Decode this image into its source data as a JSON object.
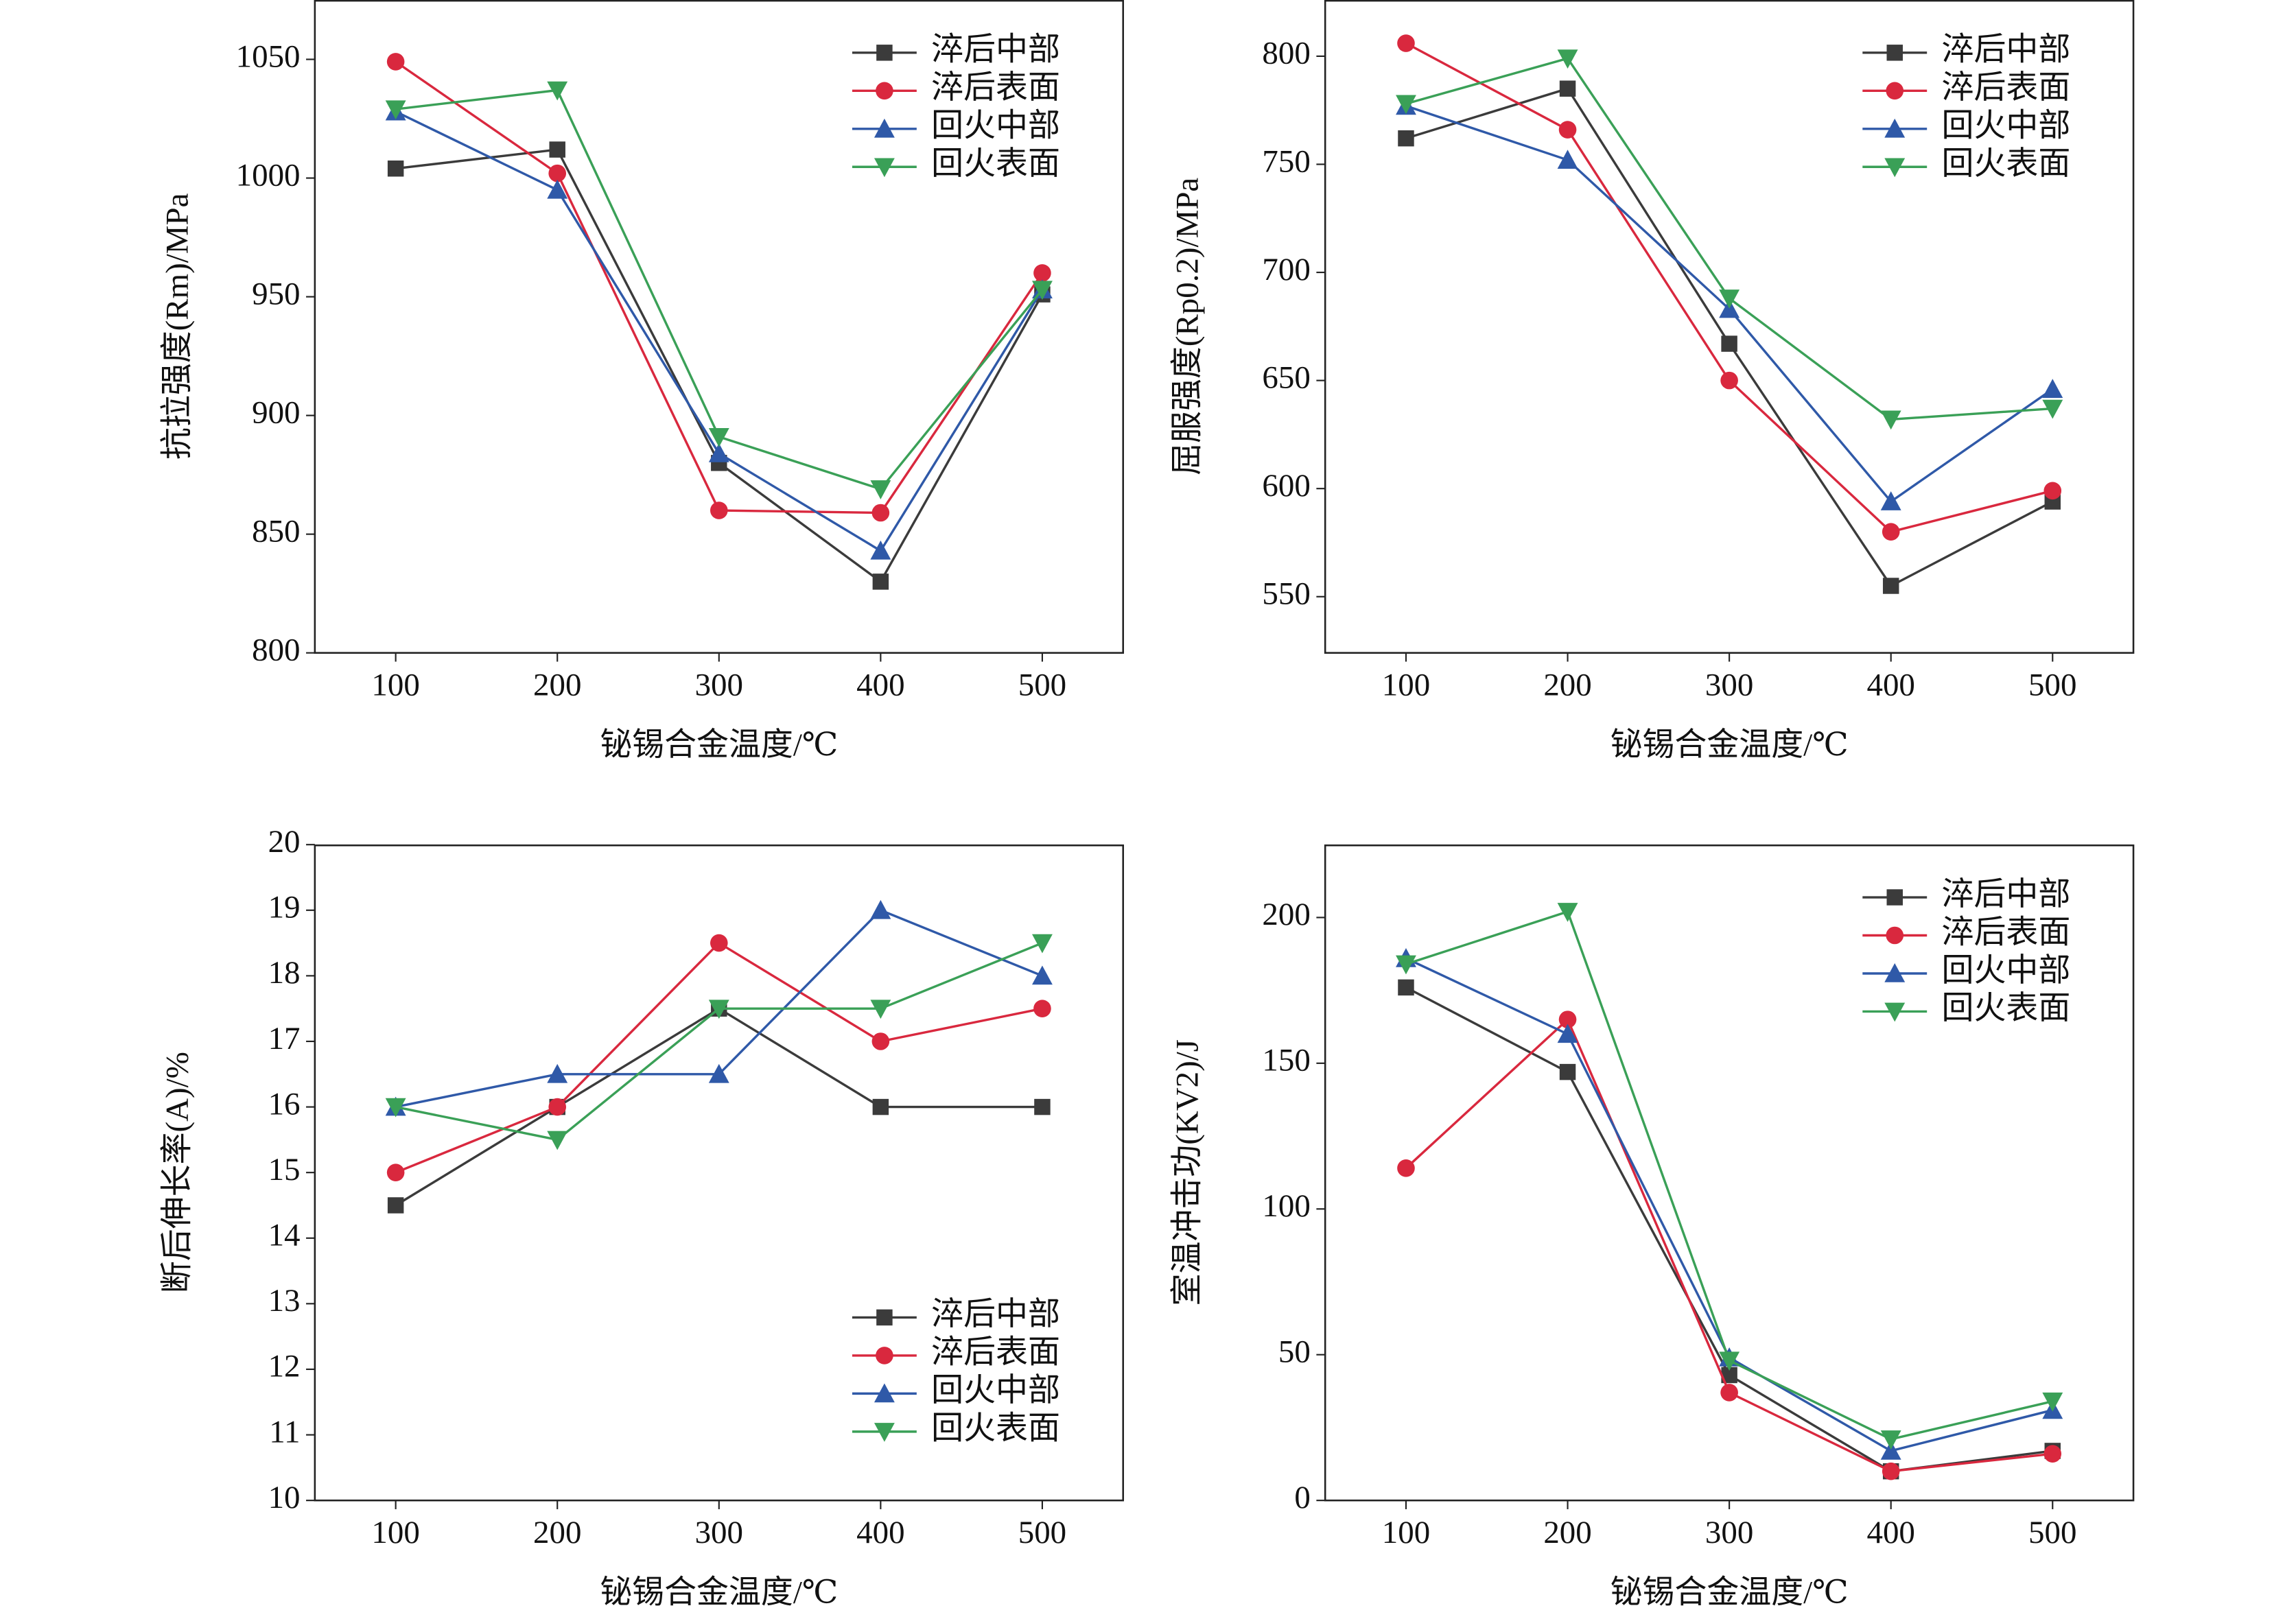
{
  "chart_data": [
    {
      "type": "line",
      "xlabel": "铋锡合金温度/℃",
      "ylabel": "抗拉强度(Rm)/MPa",
      "x": [
        100,
        200,
        300,
        400,
        500
      ],
      "xlim": [
        50,
        550
      ],
      "xticks": [
        100,
        200,
        300,
        400,
        500
      ],
      "ylim": [
        800,
        1075
      ],
      "yticks": [
        800,
        850,
        900,
        950,
        1000,
        1050
      ],
      "legend": "upper right",
      "series": [
        {
          "name": "淬后中部",
          "color": "#3b3b3b",
          "marker": "square",
          "values": [
            1004,
            1012,
            880,
            830,
            951
          ]
        },
        {
          "name": "淬后表面",
          "color": "#d9283e",
          "marker": "circle",
          "values": [
            1049,
            1002,
            860,
            859,
            960
          ]
        },
        {
          "name": "回火中部",
          "color": "#2f59a8",
          "marker": "triangle-up",
          "values": [
            1028,
            995,
            884,
            843,
            953
          ]
        },
        {
          "name": "回火表面",
          "color": "#3aa057",
          "marker": "triangle-down",
          "values": [
            1029,
            1037,
            891,
            869,
            953
          ]
        }
      ]
    },
    {
      "type": "line",
      "xlabel": "铋锡合金温度/℃",
      "ylabel": "屈服强度(Rp0.2)/MPa",
      "x": [
        100,
        200,
        300,
        400,
        500
      ],
      "xlim": [
        50,
        550
      ],
      "xticks": [
        100,
        200,
        300,
        400,
        500
      ],
      "ylim": [
        524,
        826
      ],
      "yticks": [
        550,
        600,
        650,
        700,
        750,
        800
      ],
      "legend": "upper right",
      "series": [
        {
          "name": "淬后中部",
          "color": "#3b3b3b",
          "marker": "square",
          "values": [
            762,
            785,
            667,
            555,
            594
          ]
        },
        {
          "name": "淬后表面",
          "color": "#d9283e",
          "marker": "circle",
          "values": [
            806,
            766,
            650,
            580,
            599
          ]
        },
        {
          "name": "回火中部",
          "color": "#2f59a8",
          "marker": "triangle-up",
          "values": [
            777,
            752,
            683,
            594,
            646
          ]
        },
        {
          "name": "回火表面",
          "color": "#3aa057",
          "marker": "triangle-down",
          "values": [
            778,
            799,
            688,
            632,
            637
          ]
        }
      ]
    },
    {
      "type": "line",
      "xlabel": "铋锡合金温度/℃",
      "ylabel": "断后伸长率(A)/%",
      "x": [
        100,
        200,
        300,
        400,
        500
      ],
      "xlim": [
        50,
        550
      ],
      "xticks": [
        100,
        200,
        300,
        400,
        500
      ],
      "ylim": [
        10,
        20
      ],
      "yticks": [
        10,
        11,
        12,
        13,
        14,
        15,
        16,
        17,
        18,
        19,
        20
      ],
      "legend": "lower right",
      "series": [
        {
          "name": "淬后中部",
          "color": "#3b3b3b",
          "marker": "square",
          "values": [
            14.5,
            16,
            17.5,
            16,
            16
          ]
        },
        {
          "name": "淬后表面",
          "color": "#d9283e",
          "marker": "circle",
          "values": [
            15,
            16,
            18.5,
            17,
            17.5
          ]
        },
        {
          "name": "回火中部",
          "color": "#2f59a8",
          "marker": "triangle-up",
          "values": [
            16,
            16.5,
            16.5,
            19,
            18
          ]
        },
        {
          "name": "回火表面",
          "color": "#3aa057",
          "marker": "triangle-down",
          "values": [
            16,
            15.5,
            17.5,
            17.5,
            18.5
          ]
        }
      ]
    },
    {
      "type": "line",
      "xlabel": "铋锡合金温度/℃",
      "ylabel": "室温冲击功(KV2)/J",
      "x": [
        100,
        200,
        300,
        400,
        500
      ],
      "xlim": [
        50,
        550
      ],
      "xticks": [
        100,
        200,
        300,
        400,
        500
      ],
      "ylim": [
        0,
        225
      ],
      "yticks": [
        0,
        50,
        100,
        150,
        200
      ],
      "legend": "upper right",
      "series": [
        {
          "name": "淬后中部",
          "color": "#3b3b3b",
          "marker": "square",
          "values": [
            176,
            147,
            43,
            10,
            17
          ]
        },
        {
          "name": "淬后表面",
          "color": "#d9283e",
          "marker": "circle",
          "values": [
            114,
            165,
            37,
            10,
            16
          ]
        },
        {
          "name": "回火中部",
          "color": "#2f59a8",
          "marker": "triangle-up",
          "values": [
            186,
            160,
            49,
            17,
            31
          ]
        },
        {
          "name": "回火表面",
          "color": "#3aa057",
          "marker": "triangle-down",
          "values": [
            184,
            202,
            48,
            21,
            34
          ]
        }
      ]
    }
  ]
}
